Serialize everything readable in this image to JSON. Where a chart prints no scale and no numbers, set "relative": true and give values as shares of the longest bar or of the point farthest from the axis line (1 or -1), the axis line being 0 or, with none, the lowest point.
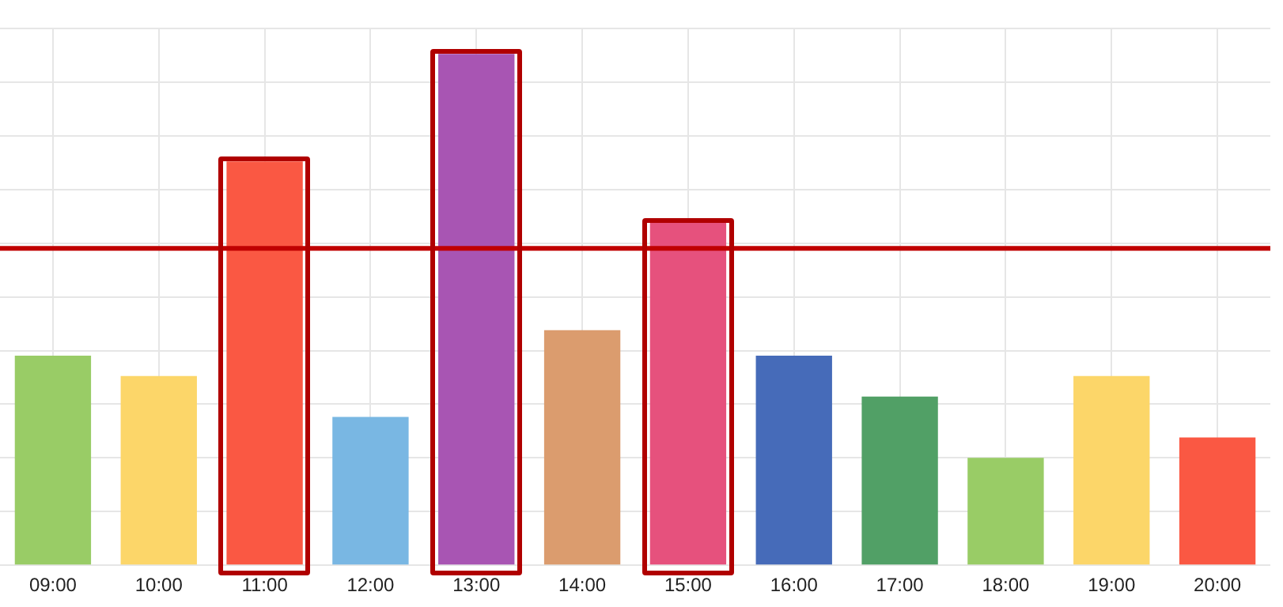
{
  "chart_data": {
    "type": "bar",
    "relative": true,
    "categories": [
      "09:00",
      "10:00",
      "11:00",
      "12:00",
      "13:00",
      "14:00",
      "15:00",
      "16:00",
      "17:00",
      "18:00",
      "19:00",
      "20:00"
    ],
    "values": [
      0.41,
      0.37,
      0.79,
      0.29,
      1,
      0.46,
      0.67,
      0.41,
      0.33,
      0.21,
      0.37,
      0.25
    ],
    "colors": [
      "#99cc66",
      "#fcd669",
      "#fa5843",
      "#79b7e3",
      "#a855b3",
      "#db9c6e",
      "#e6517d",
      "#466bb9",
      "#51a066",
      "#99cc66",
      "#fcd669",
      "#fa5843"
    ],
    "ref_lines": [
      {
        "axis": "y",
        "value": 0.62,
        "color": "#c00000"
      }
    ],
    "grid": true,
    "legend": false
  }
}
